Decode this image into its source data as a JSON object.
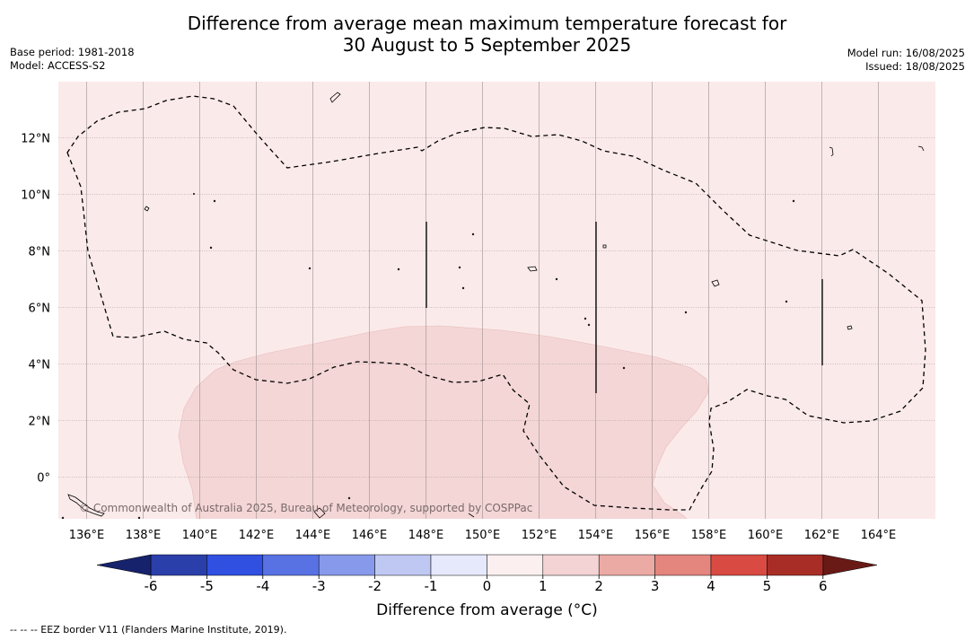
{
  "title": {
    "line1": "Difference from average mean maximum temperature forecast for",
    "line2": "30 August to 5 September 2025"
  },
  "info": {
    "base_period": "Base period: 1981-2018",
    "model": "Model: ACCESS-S2",
    "model_run": "Model run: 16/08/2025",
    "issued": "Issued: 18/08/2025"
  },
  "copyright": "© Commonwealth of Australia 2025, Bureau of Meteorology, supported by COSPPac",
  "map": {
    "lon_ticks": [
      "136°E",
      "138°E",
      "140°E",
      "142°E",
      "144°E",
      "146°E",
      "148°E",
      "150°E",
      "152°E",
      "154°E",
      "156°E",
      "158°E",
      "160°E",
      "162°E",
      "164°E"
    ],
    "lat_ticks": [
      "12°N",
      "10°N",
      "8°N",
      "6°N",
      "4°N",
      "2°N",
      "0°"
    ],
    "background_color": "#fbeaea",
    "anomaly_band_color": "#f4d6d6",
    "anomaly_band_range": "1 to 2 °C",
    "background_range": "0 to 1 °C"
  },
  "colorbar": {
    "tick_labels": [
      "-6",
      "-5",
      "-4",
      "-3",
      "-2",
      "-1",
      "0",
      "1",
      "2",
      "3",
      "4",
      "5",
      "6"
    ],
    "colors": [
      "#2a3faa",
      "#2f50e0",
      "#5872e4",
      "#8699ea",
      "#bfc7f3",
      "#e6e9fb",
      "#fcefef",
      "#f3d3d3",
      "#ecaaa5",
      "#e4857e",
      "#d94b42",
      "#a82d26"
    ],
    "under_color": "#16226b",
    "over_color": "#6a1a16",
    "label": "Difference from average (°C)"
  },
  "legend_note": "--  --  -- EEZ border V11 (Flanders Marine Institute, 2019)."
}
